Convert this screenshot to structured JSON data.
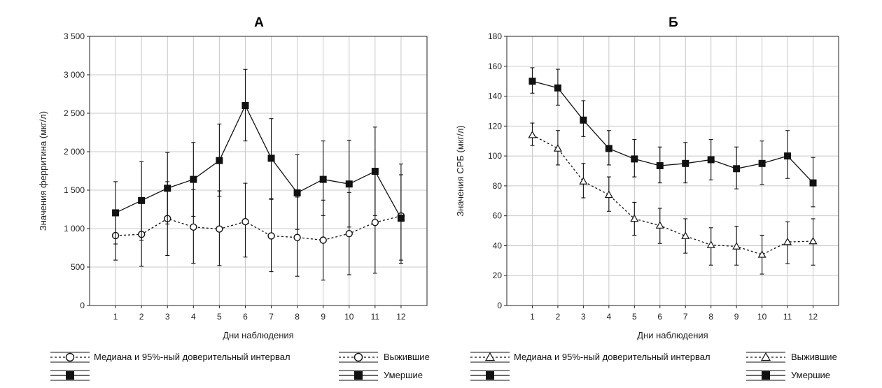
{
  "chart_data": [
    {
      "type": "line",
      "title": "А",
      "xlabel": "Дни наблюдения",
      "ylabel": "Значения ферритина (мкг/л)",
      "x": [
        1,
        2,
        3,
        4,
        5,
        6,
        7,
        8,
        9,
        10,
        11,
        12
      ],
      "xlim": [
        0,
        13
      ],
      "ylim": [
        0,
        3500
      ],
      "y_ticks": [
        0,
        500,
        1000,
        1500,
        2000,
        2500,
        3000,
        3500
      ],
      "y_tick_labels": [
        "0",
        "500",
        "1 000",
        "1 500",
        "2 000",
        "2 500",
        "3 000",
        "3 500"
      ],
      "grid": true,
      "series": [
        {
          "name": "Выжившие",
          "marker": "circle",
          "line": "dashed",
          "values": [
            910,
            925,
            1130,
            1020,
            995,
            1090,
            905,
            885,
            850,
            935,
            1080,
            1165
          ],
          "err_low": [
            590,
            510,
            650,
            550,
            520,
            630,
            440,
            380,
            330,
            400,
            420,
            550
          ],
          "err_high": [
            1220,
            1340,
            1610,
            1510,
            1490,
            1590,
            1380,
            1410,
            1370,
            1470,
            1740,
            1840
          ]
        },
        {
          "name": "Умершие",
          "marker": "square",
          "line": "solid",
          "values": [
            1205,
            1365,
            1525,
            1640,
            1885,
            2600,
            1915,
            1465,
            1640,
            1580,
            1745,
            1135
          ],
          "err_low": [
            800,
            850,
            1060,
            1160,
            1420,
            2140,
            1390,
            990,
            1170,
            1020,
            1170,
            590
          ],
          "err_high": [
            1610,
            1870,
            1990,
            2120,
            2360,
            3070,
            2430,
            1960,
            2140,
            2150,
            2320,
            1700
          ]
        }
      ],
      "legend": {
        "placement": "bottom",
        "group_label": "Медиана и 95%-ный доверительный интервал",
        "items": [
          "Выжившие",
          "Умершие"
        ]
      }
    },
    {
      "type": "line",
      "title": "Б",
      "xlabel": "Дни наблюдения",
      "ylabel": "Значения СРБ (мкг/л)",
      "x": [
        1,
        2,
        3,
        4,
        5,
        6,
        7,
        8,
        9,
        10,
        11,
        12
      ],
      "xlim": [
        0,
        13
      ],
      "ylim": [
        0,
        180
      ],
      "y_ticks": [
        0,
        20,
        40,
        60,
        80,
        100,
        120,
        140,
        160,
        180
      ],
      "y_tick_labels": [
        "0",
        "20",
        "40",
        "60",
        "80",
        "100",
        "120",
        "140",
        "160",
        "180"
      ],
      "grid": true,
      "series": [
        {
          "name": "Выжившие",
          "marker": "triangle",
          "line": "dashed",
          "values": [
            114,
            105,
            83,
            74,
            58,
            53.5,
            46.5,
            40.5,
            39.5,
            34,
            42.5,
            43
          ],
          "err_low": [
            107,
            94,
            72,
            63,
            47,
            41.5,
            35,
            27,
            27,
            21,
            28,
            27
          ],
          "err_high": [
            122,
            117,
            95,
            86,
            69,
            65,
            58,
            52,
            53,
            47,
            56,
            58
          ]
        },
        {
          "name": "Умершие",
          "marker": "square",
          "line": "solid",
          "values": [
            150,
            145.5,
            124,
            105,
            98,
            93.5,
            95,
            97.5,
            91.5,
            95,
            100,
            82
          ],
          "err_low": [
            142,
            134,
            113,
            94,
            86,
            82,
            82,
            84,
            78,
            81,
            85,
            66
          ],
          "err_high": [
            159,
            158,
            137,
            117,
            111,
            106,
            109,
            111,
            106,
            110,
            117,
            99
          ]
        }
      ],
      "legend": {
        "placement": "bottom",
        "group_label": "Медиана и 95%-ный доверительный интервал",
        "items": [
          "Выжившие",
          "Умершие"
        ]
      }
    }
  ],
  "colors": {
    "background": "#ffffff",
    "grid": "#c8c8c8",
    "axis": "#222222",
    "series": "#111111"
  }
}
